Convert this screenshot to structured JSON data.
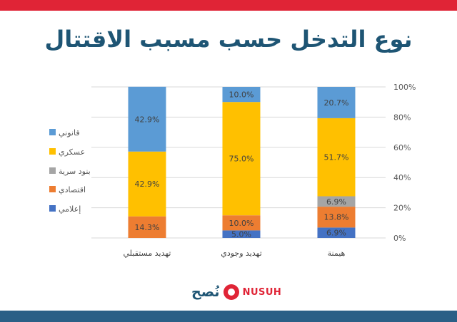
{
  "brand": {
    "arabic": "نُصح",
    "latin": "NUSUH",
    "red": "#e02436",
    "blue": "#1e5574"
  },
  "colors": {
    "top_bar": "#e02436",
    "bottom_bar": "#2a5f86"
  },
  "chart_data": {
    "type": "bar",
    "stacked": true,
    "title": "نوع التدخل حسب مسبب الاقتتال",
    "categories": [
      "تهديد مستقبلي",
      "تهديد وجودي",
      "هيمنة"
    ],
    "series": [
      {
        "name": "إعلامي",
        "color": "#4472c4",
        "values": [
          0,
          5.0,
          6.9
        ]
      },
      {
        "name": "اقتصادي",
        "color": "#ed7d31",
        "values": [
          14.3,
          10.0,
          13.8
        ]
      },
      {
        "name": "بنود سرية",
        "color": "#a5a5a5",
        "values": [
          0,
          0,
          6.9
        ]
      },
      {
        "name": "عسكري",
        "color": "#ffc000",
        "values": [
          42.9,
          75.0,
          51.7
        ]
      },
      {
        "name": "قانوني",
        "color": "#5b9bd5",
        "values": [
          42.9,
          10.0,
          20.7
        ]
      }
    ],
    "y_ticks": [
      "0%",
      "20%",
      "40%",
      "60%",
      "80%",
      "100%"
    ],
    "ylim": [
      0,
      100
    ],
    "y_axis_side": "right",
    "legend_position": "left",
    "legend_order": [
      "قانوني",
      "عسكري",
      "بنود سرية",
      "اقتصادي",
      "إعلامي"
    ],
    "grid": true
  }
}
